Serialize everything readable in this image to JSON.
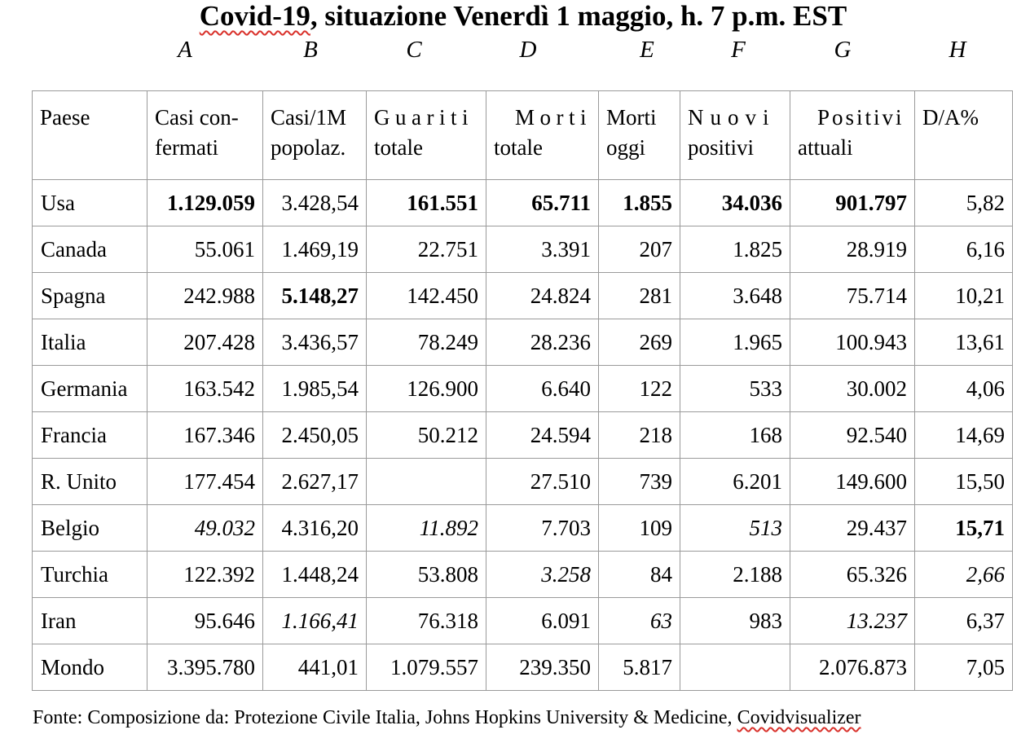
{
  "title": {
    "part1": "Covid-19",
    "part2": ", situazione Venerdì 1 maggio, h. 7 p.m. EST"
  },
  "column_letters": [
    "A",
    "B",
    "C",
    "D",
    "E",
    "F",
    "G",
    "H"
  ],
  "table": {
    "headers": {
      "paese": "Paese",
      "casi_line1": "Casi con-",
      "casi_line2": "fermati",
      "casi1m_line1": "Casi/1M",
      "casi1m_line2": "popolaz.",
      "guariti_line1": "Guariti",
      "guariti_line2": "totale",
      "morti_line1": "Morti",
      "morti_line2": "totale",
      "morti_oggi_line1": "Morti",
      "morti_oggi_line2": "oggi",
      "nuovi_line1": "Nuovi",
      "nuovi_line2": "positivi",
      "positivi_line1": "Positivi",
      "positivi_line2": "attuali",
      "da": "D/A%"
    },
    "rows": [
      {
        "country": "Usa",
        "casi": "1.129.059",
        "casi1m": "3.428,54",
        "guariti": "161.551",
        "morti": "65.711",
        "morti_oggi": "1.855",
        "nuovi": "34.036",
        "positivi": "901.797",
        "da": "5,82"
      },
      {
        "country": "Canada",
        "casi": "55.061",
        "casi1m": "1.469,19",
        "guariti": "22.751",
        "morti": "3.391",
        "morti_oggi": "207",
        "nuovi": "1.825",
        "positivi": "28.919",
        "da": "6,16"
      },
      {
        "country": "Spagna",
        "casi": "242.988",
        "casi1m": "5.148,27",
        "guariti": "142.450",
        "morti": "24.824",
        "morti_oggi": "281",
        "nuovi": "3.648",
        "positivi": "75.714",
        "da": "10,21"
      },
      {
        "country": "Italia",
        "casi": "207.428",
        "casi1m": "3.436,57",
        "guariti": "78.249",
        "morti": "28.236",
        "morti_oggi": "269",
        "nuovi": "1.965",
        "positivi": "100.943",
        "da": "13,61"
      },
      {
        "country": "Germania",
        "casi": "163.542",
        "casi1m": "1.985,54",
        "guariti": "126.900",
        "morti": "6.640",
        "morti_oggi": "122",
        "nuovi": "533",
        "positivi": "30.002",
        "da": "4,06"
      },
      {
        "country": "Francia",
        "casi": "167.346",
        "casi1m": "2.450,05",
        "guariti": "50.212",
        "morti": "24.594",
        "morti_oggi": "218",
        "nuovi": "168",
        "positivi": "92.540",
        "da": "14,69"
      },
      {
        "country": "R. Unito",
        "casi": "177.454",
        "casi1m": "2.627,17",
        "guariti": "",
        "morti": "27.510",
        "morti_oggi": "739",
        "nuovi": "6.201",
        "positivi": "149.600",
        "da": "15,50"
      },
      {
        "country": "Belgio",
        "casi": "49.032",
        "casi1m": "4.316,20",
        "guariti": "11.892",
        "morti": "7.703",
        "morti_oggi": "109",
        "nuovi": "513",
        "positivi": "29.437",
        "da": "15,71"
      },
      {
        "country": "Turchia",
        "casi": "122.392",
        "casi1m": "1.448,24",
        "guariti": "53.808",
        "morti": "3.258",
        "morti_oggi": "84",
        "nuovi": "2.188",
        "positivi": "65.326",
        "da": "2,66"
      },
      {
        "country": "Iran",
        "casi": "95.646",
        "casi1m": "1.166,41",
        "guariti": "76.318",
        "morti": "6.091",
        "morti_oggi": "63",
        "nuovi": "983",
        "positivi": "13.237",
        "da": "6,37"
      },
      {
        "country": "Mondo",
        "casi": "3.395.780",
        "casi1m": "441,01",
        "guariti": "1.079.557",
        "morti": "239.350",
        "morti_oggi": "5.817",
        "nuovi": "",
        "positivi": "2.076.873",
        "da": "7,05"
      }
    ]
  },
  "source": {
    "prefix": "Fonte: Composizione da: Protezione Civile Italia, Johns Hopkins University & Medicine, ",
    "link": "Covidvisualizer"
  }
}
